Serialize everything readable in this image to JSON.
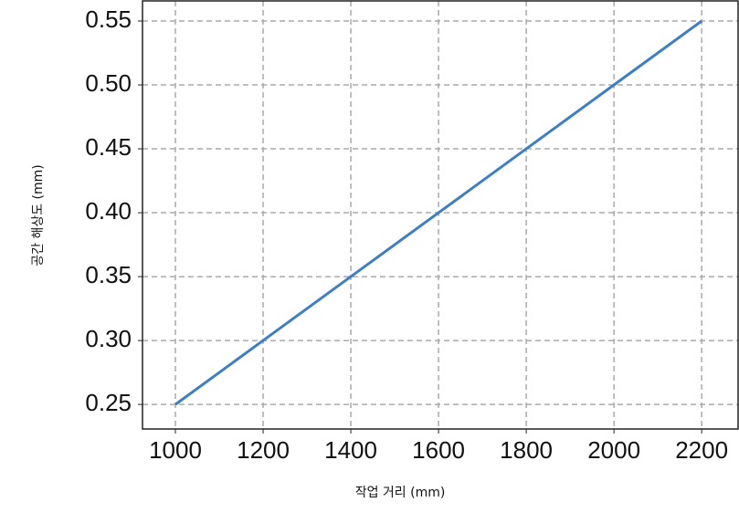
{
  "chart_data": {
    "type": "line",
    "x": [
      1000,
      1200,
      1400,
      1600,
      1800,
      2000,
      2200
    ],
    "series": [
      {
        "name": null,
        "color": "#3d7fc4",
        "values": [
          0.25,
          0.3,
          0.35,
          0.4,
          0.45,
          0.5,
          0.55
        ]
      }
    ],
    "xlabel": "작업 거리 (mm)",
    "ylabel": "공간 해상도 (mm)",
    "xlim": [
      925,
      2283
    ],
    "ylim": [
      0.2308,
      0.5657
    ],
    "xticks": [
      1000,
      1200,
      1400,
      1600,
      1800,
      2000,
      2200
    ],
    "yticks": [
      0.25,
      {
        "value": 0.3,
        "label": "0.30"
      },
      0.35,
      {
        "value": 0.4,
        "label": "0.40"
      },
      0.45,
      {
        "value": 0.5,
        "label": "0.50"
      },
      0.55
    ],
    "grid": true
  }
}
